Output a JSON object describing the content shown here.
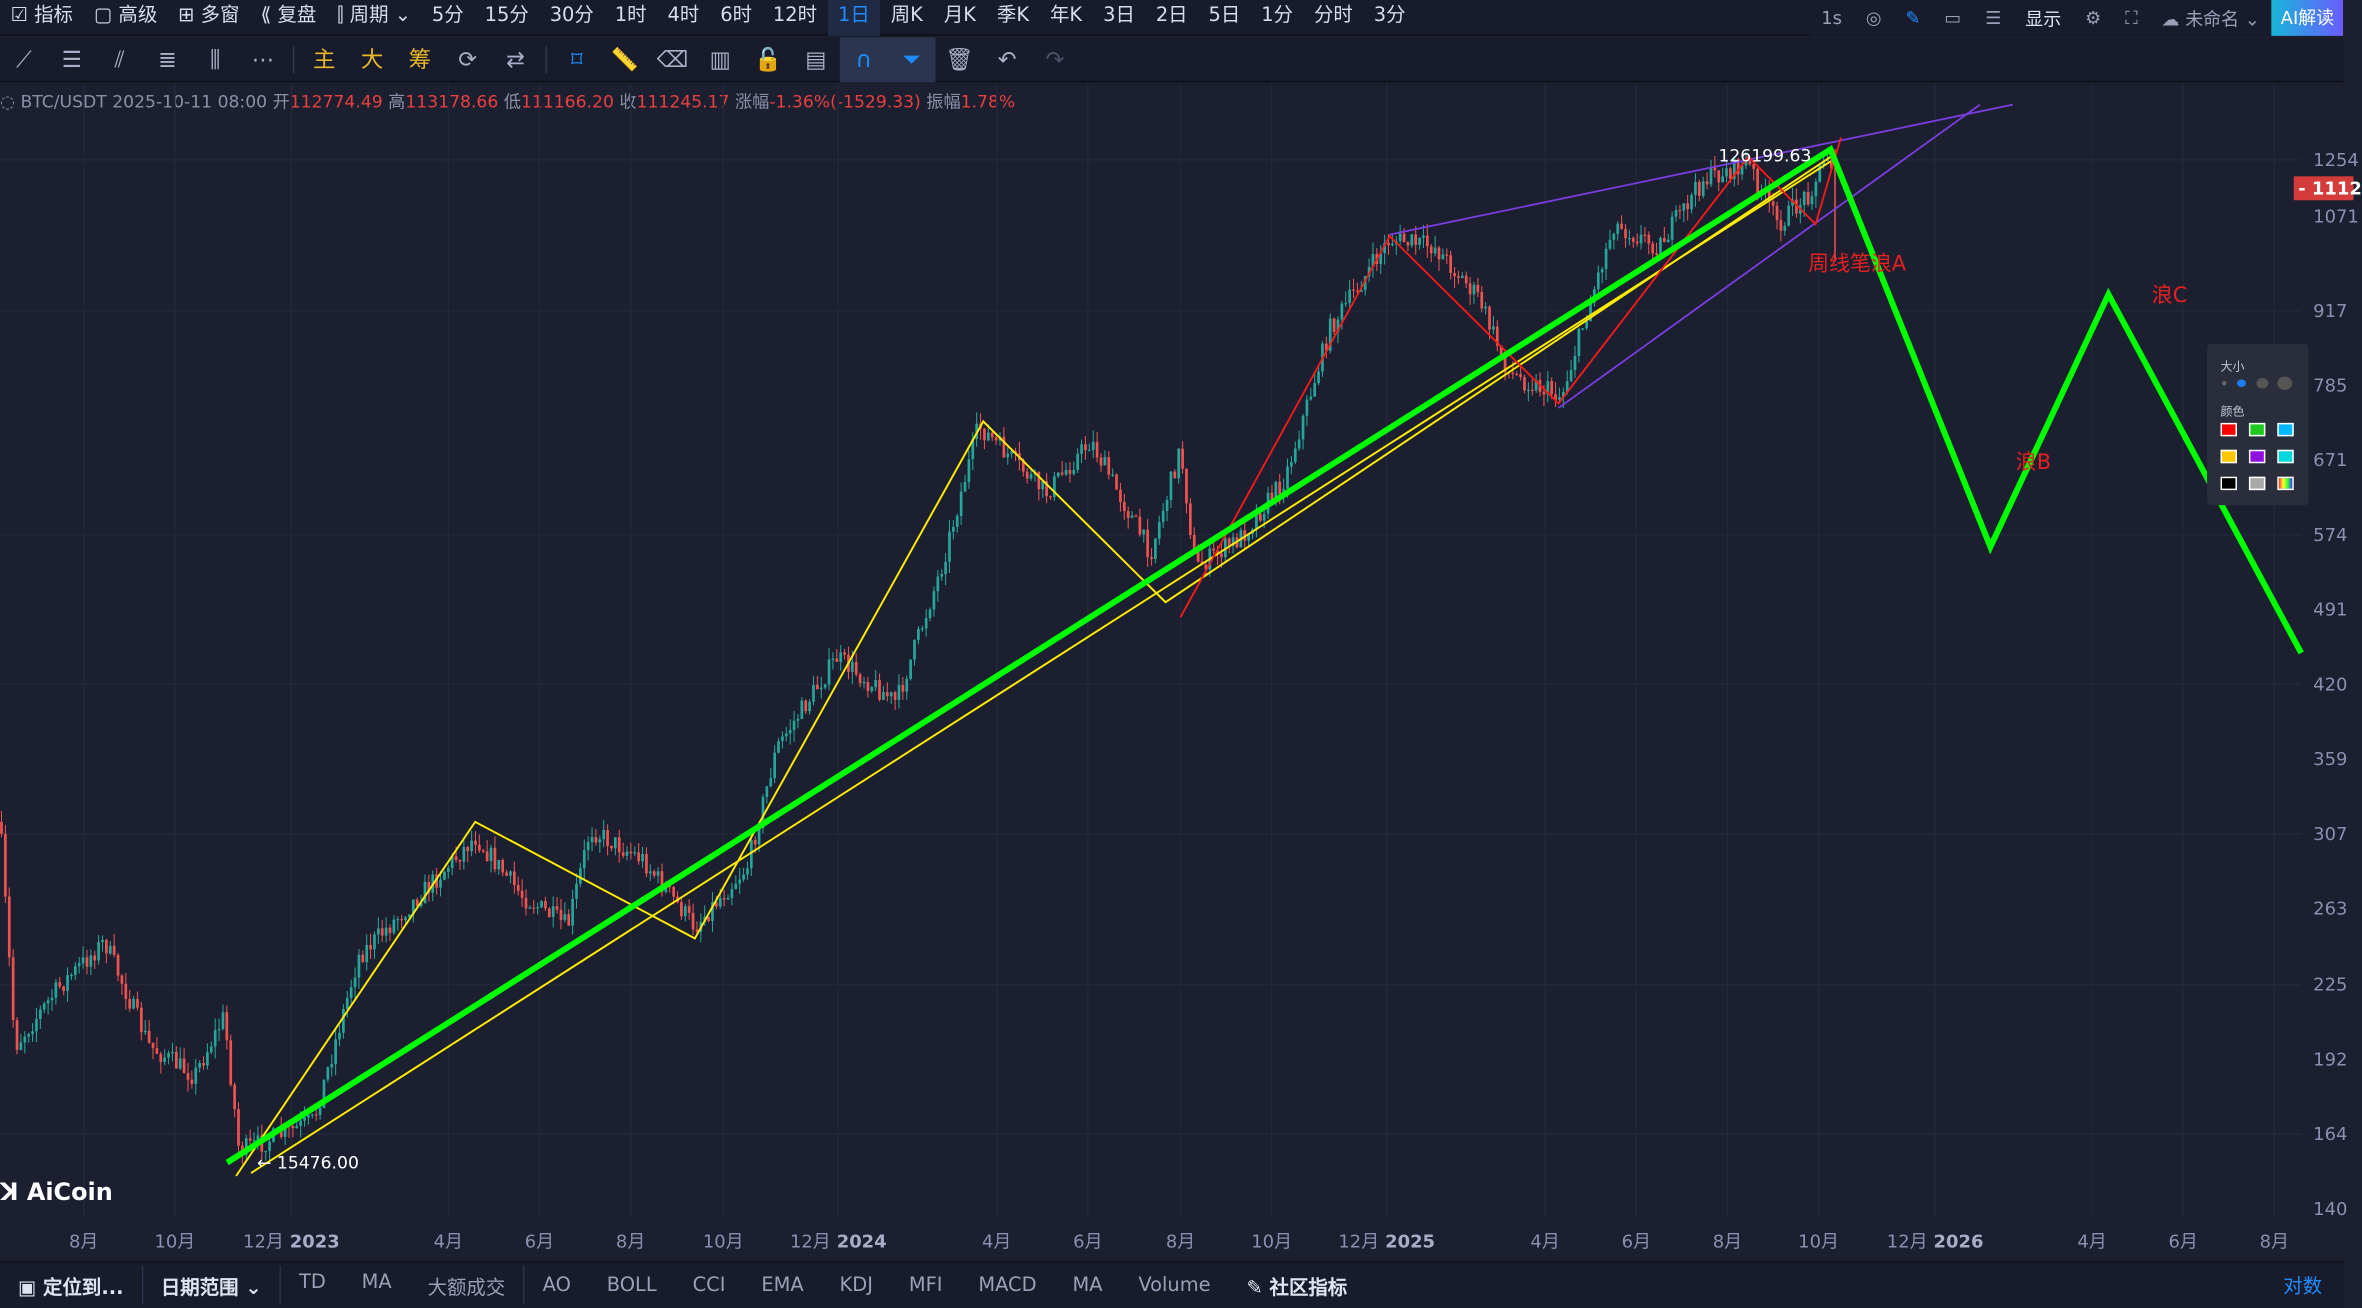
{
  "top": {
    "items": [
      "指标",
      "高级",
      "多窗",
      "复盘",
      "周期",
      "5分",
      "15分",
      "30分",
      "1时",
      "4时",
      "6时",
      "12时",
      "1日",
      "周K",
      "月K",
      "季K",
      "年K",
      "3日",
      "2日",
      "5日",
      "1分",
      "分时",
      "3分"
    ],
    "active": "1日",
    "right": [
      "1s",
      "显示",
      "未命名",
      "AI解读"
    ]
  },
  "toolbar": {
    "text_tools": [
      "主",
      "大",
      "筹"
    ]
  },
  "info": {
    "symbol": "BTC/USDT",
    "datetime": "2025-10-11 08:00",
    "open_label": "开",
    "open": "112774.49",
    "high_label": "高",
    "high": "113178.66",
    "low_label": "低",
    "low": "111166.20",
    "close_label": "收",
    "close": "111245.17",
    "change_label": "涨幅",
    "change": "-1.36%(-1529.33)",
    "amp_label": "振幅",
    "amp": "1.78%"
  },
  "y_axis": [
    "1254",
    "1071",
    "917",
    "785",
    "671",
    "574",
    "491",
    "420",
    "359",
    "307",
    "263",
    "225",
    "192",
    "164",
    "140"
  ],
  "price_tag": "- 1112",
  "x_axis": [
    [
      "8月",
      ""
    ],
    [
      "10月",
      ""
    ],
    [
      "12月",
      "2023"
    ],
    [
      "4月",
      ""
    ],
    [
      "6月",
      ""
    ],
    [
      "8月",
      ""
    ],
    [
      "10月",
      ""
    ],
    [
      "12月",
      "2024"
    ],
    [
      "4月",
      ""
    ],
    [
      "6月",
      ""
    ],
    [
      "8月",
      ""
    ],
    [
      "10月",
      ""
    ],
    [
      "12月",
      "2025"
    ],
    [
      "4月",
      ""
    ],
    [
      "6月",
      ""
    ],
    [
      "8月",
      ""
    ],
    [
      "10月",
      ""
    ],
    [
      "12月",
      "2026"
    ],
    [
      "4月",
      ""
    ],
    [
      "6月",
      ""
    ],
    [
      "8月",
      ""
    ]
  ],
  "annotations": {
    "high": "126199.63",
    "low": "← 15476.00",
    "waveA": "周线笔浪A",
    "waveB": "浪B",
    "waveC": "浪C"
  },
  "palette": {
    "size_label": "大小",
    "color_label": "颜色",
    "colors": [
      "#ff0000",
      "#1ec81e",
      "#00b8ff",
      "#ffc800",
      "#9010e0",
      "#00d8e0",
      "#000000",
      "#a8a8a8",
      "rainbow"
    ],
    "selected": "#1ec81e"
  },
  "watermark": "AiCoin",
  "bottom": {
    "locate": "定位到...",
    "range": "日期范围",
    "items1": [
      "TD",
      "MA",
      "大额成交"
    ],
    "items2": [
      "AO",
      "BOLL",
      "CCI",
      "EMA",
      "KDJ",
      "MFI",
      "MACD",
      "MA",
      "Volume"
    ],
    "community": "社区指标",
    "log": "对数"
  },
  "colors": {
    "up": "#26a69a",
    "down": "#ef5350",
    "bg": "#1c1f30",
    "green_line": "#00ff00",
    "yellow_line": "#ffee00",
    "red_line": "#ff1a1a",
    "purple_line": "#7a3ee0"
  }
}
